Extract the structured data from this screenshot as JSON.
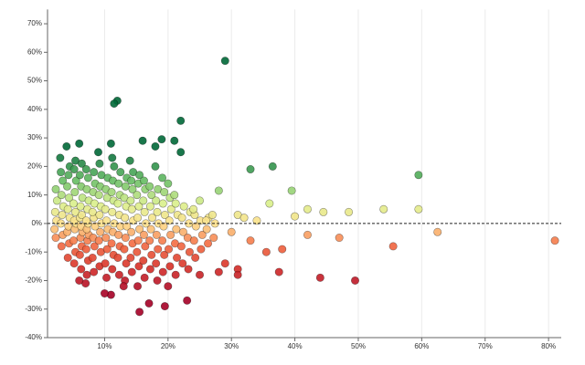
{
  "chart_data": {
    "type": "scatter",
    "xlim": [
      1,
      82
    ],
    "ylim": [
      -40,
      75
    ],
    "xticks": [
      {
        "value": 10,
        "label": "10%"
      },
      {
        "value": 20,
        "label": "20%"
      },
      {
        "value": 30,
        "label": "30%"
      },
      {
        "value": 40,
        "label": "40%"
      },
      {
        "value": 50,
        "label": "50%"
      },
      {
        "value": 60,
        "label": "60%"
      },
      {
        "value": 70,
        "label": "70%"
      },
      {
        "value": 80,
        "label": "80%"
      }
    ],
    "yticks": [
      {
        "value": -40,
        "label": "-40%"
      },
      {
        "value": -30,
        "label": "-30%"
      },
      {
        "value": -20,
        "label": "-20%"
      },
      {
        "value": -10,
        "label": "-10%"
      },
      {
        "value": 0,
        "label": "0%"
      },
      {
        "value": 10,
        "label": "10%"
      },
      {
        "value": 20,
        "label": "20%"
      },
      {
        "value": 30,
        "label": "30%"
      },
      {
        "value": 40,
        "label": "40%"
      },
      {
        "value": 50,
        "label": "50%"
      },
      {
        "value": 60,
        "label": "60%"
      },
      {
        "value": 70,
        "label": "70%"
      }
    ],
    "grid": "x",
    "reference_line": {
      "value": 0,
      "style": "dashed"
    },
    "color_scale": {
      "domain": [
        -25,
        -15,
        -7,
        0,
        7,
        15,
        25
      ],
      "colors": [
        "#a50026",
        "#d73027",
        "#f46d43",
        "#fee08b",
        "#d9ef8b",
        "#66bd63",
        "#006837"
      ]
    },
    "points": [
      [
        2.3,
        -5
      ],
      [
        2.1,
        -2
      ],
      [
        2.4,
        1
      ],
      [
        2.2,
        4
      ],
      [
        2.5,
        8
      ],
      [
        2.3,
        12
      ],
      [
        3.2,
        -8
      ],
      [
        3.4,
        -4
      ],
      [
        3.1,
        0
      ],
      [
        3.3,
        3
      ],
      [
        3.5,
        6
      ],
      [
        3.2,
        10
      ],
      [
        3.4,
        15
      ],
      [
        3.1,
        18
      ],
      [
        4.2,
        -12
      ],
      [
        4.4,
        -7
      ],
      [
        4.1,
        -3
      ],
      [
        4.3,
        -1
      ],
      [
        4.5,
        2
      ],
      [
        4.2,
        5
      ],
      [
        4.4,
        9
      ],
      [
        4.1,
        13
      ],
      [
        4.3,
        17
      ],
      [
        4.5,
        20
      ],
      [
        5.2,
        -14
      ],
      [
        5.4,
        -10
      ],
      [
        5.1,
        -6
      ],
      [
        5.3,
        -2
      ],
      [
        5.5,
        0
      ],
      [
        5.2,
        1
      ],
      [
        5.4,
        4
      ],
      [
        5.1,
        7
      ],
      [
        5.3,
        11
      ],
      [
        5.5,
        15
      ],
      [
        5.2,
        19
      ],
      [
        5.4,
        22
      ],
      [
        6.3,
        -16
      ],
      [
        6.1,
        -11
      ],
      [
        6.4,
        -8
      ],
      [
        6.2,
        -5
      ],
      [
        6.5,
        -3
      ],
      [
        6.3,
        -1
      ],
      [
        6.1,
        2
      ],
      [
        6.4,
        3
      ],
      [
        6.2,
        6
      ],
      [
        6.5,
        9
      ],
      [
        6.3,
        13
      ],
      [
        6.1,
        17
      ],
      [
        6.4,
        21
      ],
      [
        7.2,
        -18
      ],
      [
        7.4,
        -13
      ],
      [
        7.1,
        -9
      ],
      [
        7.3,
        -6
      ],
      [
        7.5,
        -4
      ],
      [
        7.2,
        -2
      ],
      [
        7.4,
        0
      ],
      [
        7.1,
        1
      ],
      [
        7.3,
        5
      ],
      [
        7.5,
        8
      ],
      [
        7.2,
        12
      ],
      [
        7.4,
        16
      ],
      [
        7.1,
        19
      ],
      [
        8.3,
        -17
      ],
      [
        8.1,
        -12
      ],
      [
        8.4,
        -8
      ],
      [
        8.2,
        -5
      ],
      [
        8.5,
        -1
      ],
      [
        8.3,
        2
      ],
      [
        8.1,
        4
      ],
      [
        8.4,
        7
      ],
      [
        8.2,
        11
      ],
      [
        8.5,
        14
      ],
      [
        8.3,
        18
      ],
      [
        9.2,
        -15
      ],
      [
        9.4,
        -10
      ],
      [
        9.1,
        -6
      ],
      [
        9.3,
        -3
      ],
      [
        9.5,
        0
      ],
      [
        9.2,
        3
      ],
      [
        9.4,
        6
      ],
      [
        9.1,
        10
      ],
      [
        9.3,
        13
      ],
      [
        9.5,
        17
      ],
      [
        9.2,
        21
      ],
      [
        10.3,
        -19
      ],
      [
        10.1,
        -14
      ],
      [
        10.4,
        -9
      ],
      [
        10.2,
        -5
      ],
      [
        10.5,
        -2
      ],
      [
        10.3,
        1
      ],
      [
        10.1,
        5
      ],
      [
        10.4,
        9
      ],
      [
        10.2,
        12
      ],
      [
        10.5,
        16
      ],
      [
        11.2,
        -16
      ],
      [
        11.4,
        -11
      ],
      [
        11.1,
        -7
      ],
      [
        11.3,
        -3
      ],
      [
        11.5,
        0
      ],
      [
        11.2,
        4
      ],
      [
        11.4,
        8
      ],
      [
        11.1,
        11
      ],
      [
        11.3,
        15
      ],
      [
        11.5,
        20
      ],
      [
        11.2,
        23
      ],
      [
        12.3,
        -18
      ],
      [
        12.1,
        -12
      ],
      [
        12.4,
        -8
      ],
      [
        12.2,
        -4
      ],
      [
        12.5,
        -1
      ],
      [
        12.3,
        3
      ],
      [
        12.1,
        7
      ],
      [
        12.4,
        10
      ],
      [
        12.2,
        14
      ],
      [
        12.5,
        18
      ],
      [
        13.2,
        -20
      ],
      [
        13.4,
        -14
      ],
      [
        13.1,
        -9
      ],
      [
        13.3,
        -5
      ],
      [
        13.5,
        -1
      ],
      [
        13.2,
        2
      ],
      [
        13.4,
        6
      ],
      [
        13.1,
        9
      ],
      [
        13.3,
        13
      ],
      [
        13.5,
        16
      ],
      [
        14.3,
        -17
      ],
      [
        14.1,
        -12
      ],
      [
        14.4,
        -7
      ],
      [
        14.2,
        -3
      ],
      [
        14.5,
        1
      ],
      [
        14.3,
        5
      ],
      [
        14.1,
        8
      ],
      [
        14.4,
        12
      ],
      [
        14.2,
        15
      ],
      [
        14.5,
        18
      ],
      [
        15.2,
        -22
      ],
      [
        15.4,
        -15
      ],
      [
        15.1,
        -10
      ],
      [
        15.3,
        -6
      ],
      [
        15.5,
        -2
      ],
      [
        15.2,
        2
      ],
      [
        15.4,
        6
      ],
      [
        15.1,
        10
      ],
      [
        15.3,
        14
      ],
      [
        15.5,
        17
      ],
      [
        16.3,
        -19
      ],
      [
        16.1,
        -13
      ],
      [
        16.4,
        -8
      ],
      [
        16.2,
        -4
      ],
      [
        16.5,
        0
      ],
      [
        16.3,
        4
      ],
      [
        16.1,
        8
      ],
      [
        16.4,
        12
      ],
      [
        16.2,
        15
      ],
      [
        17.2,
        -16
      ],
      [
        17.4,
        -11
      ],
      [
        17.1,
        -6
      ],
      [
        17.3,
        -2
      ],
      [
        17.5,
        2
      ],
      [
        17.2,
        6
      ],
      [
        17.4,
        10
      ],
      [
        17.1,
        13
      ],
      [
        18.3,
        -20
      ],
      [
        18.1,
        -14
      ],
      [
        18.4,
        -9
      ],
      [
        18.2,
        -4
      ],
      [
        18.5,
        0
      ],
      [
        18.3,
        4
      ],
      [
        18.1,
        8
      ],
      [
        18.4,
        12
      ],
      [
        19.2,
        -17
      ],
      [
        19.4,
        -11
      ],
      [
        19.1,
        -6
      ],
      [
        19.3,
        -1
      ],
      [
        19.5,
        3
      ],
      [
        19.2,
        7
      ],
      [
        19.4,
        11
      ],
      [
        19.1,
        16
      ],
      [
        20.3,
        -15
      ],
      [
        20.1,
        -9
      ],
      [
        20.4,
        -4
      ],
      [
        20.2,
        1
      ],
      [
        20.5,
        5
      ],
      [
        20.3,
        9
      ],
      [
        21.2,
        -18
      ],
      [
        21.4,
        -12
      ],
      [
        21.1,
        -7
      ],
      [
        21.3,
        -2
      ],
      [
        21.5,
        3
      ],
      [
        21.2,
        7
      ],
      [
        22.3,
        -14
      ],
      [
        22.1,
        -8
      ],
      [
        22.4,
        -3
      ],
      [
        22.2,
        2
      ],
      [
        22.5,
        6
      ],
      [
        23.2,
        -16
      ],
      [
        23.4,
        -10
      ],
      [
        23.1,
        -5
      ],
      [
        23.3,
        0
      ],
      [
        23.5,
        4
      ],
      [
        24.3,
        -12
      ],
      [
        24.1,
        -6
      ],
      [
        24.4,
        -1
      ],
      [
        24.2,
        3
      ],
      [
        25.2,
        -9
      ],
      [
        25.4,
        -4
      ],
      [
        25.1,
        1
      ],
      [
        26.3,
        -7
      ],
      [
        26.1,
        -2
      ],
      [
        26.4,
        2
      ],
      [
        27.2,
        -5
      ],
      [
        27.4,
        0
      ],
      [
        12,
        43
      ],
      [
        11.5,
        42
      ],
      [
        29,
        57
      ],
      [
        22,
        36
      ],
      [
        11,
        28
      ],
      [
        16,
        29
      ],
      [
        19,
        29.5
      ],
      [
        18,
        27
      ],
      [
        21,
        29
      ],
      [
        22,
        25
      ],
      [
        33,
        19
      ],
      [
        36.5,
        20
      ],
      [
        59.5,
        17
      ],
      [
        39.5,
        11.5
      ],
      [
        28,
        11.5
      ],
      [
        36,
        7
      ],
      [
        42,
        5
      ],
      [
        40,
        2.5
      ],
      [
        44.5,
        4
      ],
      [
        48.5,
        4
      ],
      [
        54,
        5
      ],
      [
        59.5,
        5
      ],
      [
        62.5,
        -3
      ],
      [
        81,
        -6
      ],
      [
        55.5,
        -8
      ],
      [
        47,
        -5
      ],
      [
        42,
        -4
      ],
      [
        38,
        -9
      ],
      [
        35.5,
        -10
      ],
      [
        37.5,
        -17
      ],
      [
        44,
        -19
      ],
      [
        49.5,
        -20
      ],
      [
        31,
        -16
      ],
      [
        31,
        -18
      ],
      [
        28,
        -17
      ],
      [
        23,
        -27
      ],
      [
        19.5,
        -29
      ],
      [
        15.5,
        -31
      ],
      [
        17,
        -28
      ],
      [
        11,
        -25
      ],
      [
        10,
        -24.5
      ],
      [
        13,
        -22
      ],
      [
        7,
        -21
      ],
      [
        6,
        -20
      ],
      [
        20,
        -22
      ],
      [
        25,
        -18
      ],
      [
        29,
        -14
      ],
      [
        33,
        -6
      ],
      [
        30,
        -3
      ],
      [
        31,
        3
      ],
      [
        32,
        2
      ],
      [
        34,
        1
      ],
      [
        26,
        1
      ],
      [
        27,
        3
      ],
      [
        24,
        5
      ],
      [
        25,
        8
      ],
      [
        21,
        10
      ],
      [
        20,
        14
      ],
      [
        18,
        20
      ],
      [
        14,
        22
      ],
      [
        9,
        25
      ],
      [
        4,
        27
      ],
      [
        3,
        23
      ],
      [
        6,
        28
      ]
    ]
  }
}
